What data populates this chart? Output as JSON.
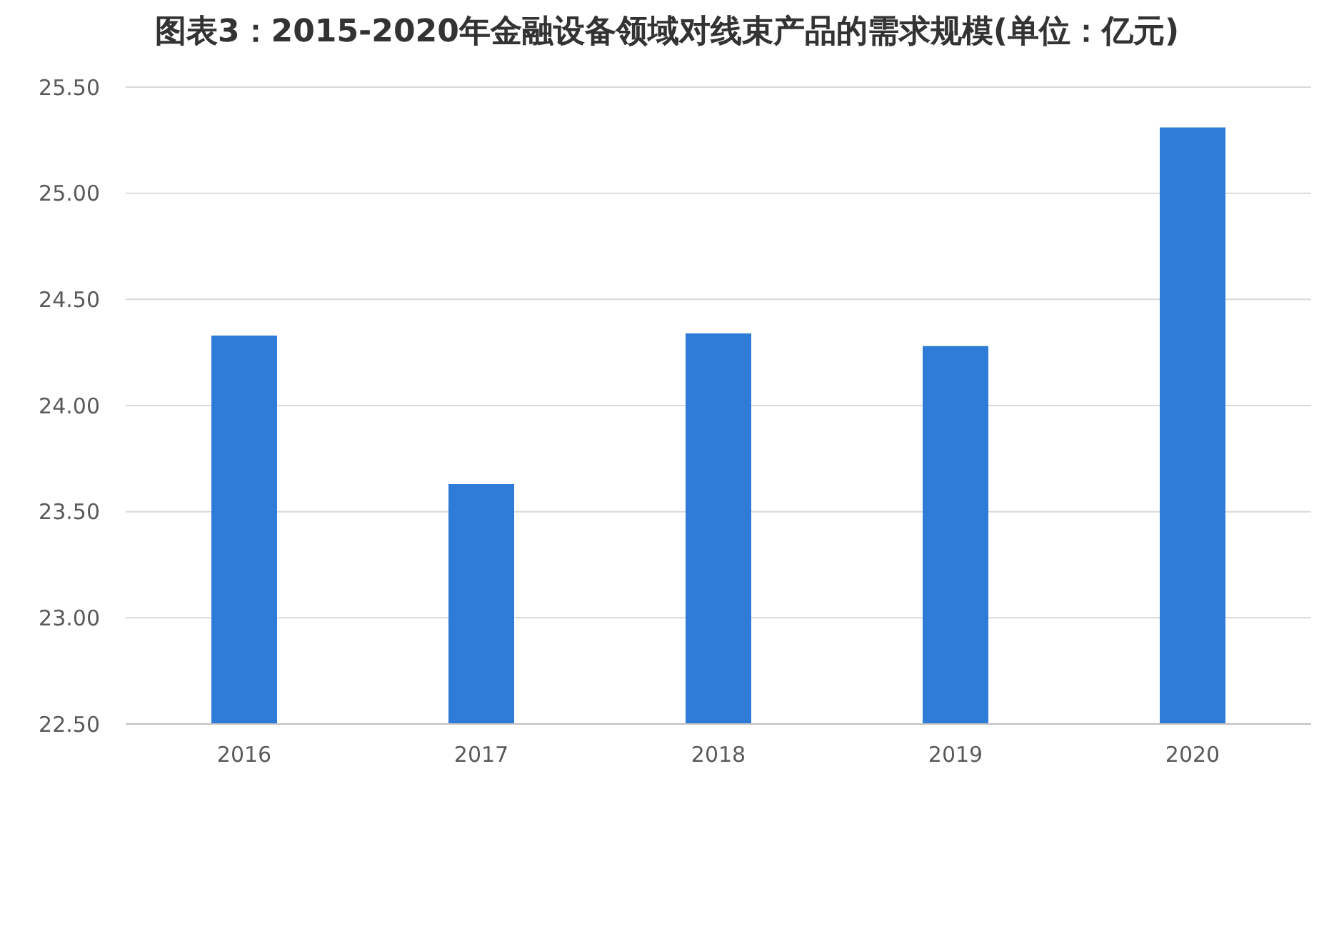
{
  "chart_data": {
    "type": "bar",
    "title": "图表3：2015-2020年金融设备领域对线束产品的需求规模(单位：亿元)",
    "categories": [
      "2016",
      "2017",
      "2018",
      "2019",
      "2020"
    ],
    "values": [
      24.33,
      23.63,
      24.34,
      24.28,
      25.31
    ],
    "color": "#2f7bd8",
    "ylim": [
      22.5,
      25.5
    ],
    "yticks": [
      {
        "value": 22.5,
        "label": "22.50"
      },
      {
        "value": 23,
        "label": "23.00"
      },
      {
        "value": 23.5,
        "label": "23.50"
      },
      {
        "value": 24,
        "label": "24.00"
      },
      {
        "value": 24.5,
        "label": "24.50"
      },
      {
        "value": 25,
        "label": "25.00"
      },
      {
        "value": 25.5,
        "label": "25.50"
      }
    ],
    "grid": "y"
  }
}
